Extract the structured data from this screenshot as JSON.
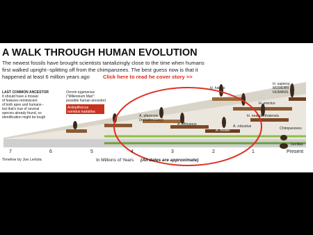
{
  "header": {
    "title": "A WALK THROUGH HUMAN EVOLUTION",
    "intro": [
      "The newest fossils have brought scientists tantalizingly close to the time when humans",
      "first walked upright--splitting off from the chimpanzees. The best guess now is that it",
      "happened at least 6 million years ago"
    ],
    "link": "Click here to read he cover story >>"
  },
  "notes": {
    "ancestor": [
      "LAST COMMON ANCESTOR",
      "It should have a mosaic",
      "of features reminiscent",
      "of both apes and humans--",
      "but that's true of several",
      "species already found, so",
      "identification might be tough"
    ],
    "orrorin": [
      "Orrorin tugenensis",
      "(\"Millennium Man\";",
      "possible human ancestor)"
    ]
  },
  "species": {
    "ardipithecus": [
      "Ardepithecus",
      "ramidus kadabba"
    ],
    "afarensis": [
      "A. afarensis",
      "(includes Lucy)"
    ],
    "africanus": "A. Africanus",
    "boisei": "A. Boisei",
    "robustus": "A. robustus",
    "habilis": "H. habilis",
    "erectus": "H. erectus",
    "sapiens": [
      "H. sapiens",
      "MODERN",
      "HUMANS"
    ],
    "neanderthalensis": "H. neanderthalensis",
    "chimpanzees": "Chimpanzees",
    "gorillas": "Gorillas"
  },
  "axis": {
    "labels": [
      "7",
      "6",
      "5",
      "4",
      "3",
      "2",
      "1",
      "Present"
    ],
    "title": "In Millions of Years",
    "note": "(All dates are approximate)"
  },
  "credit": "Timeline by Joe Lertola"
}
